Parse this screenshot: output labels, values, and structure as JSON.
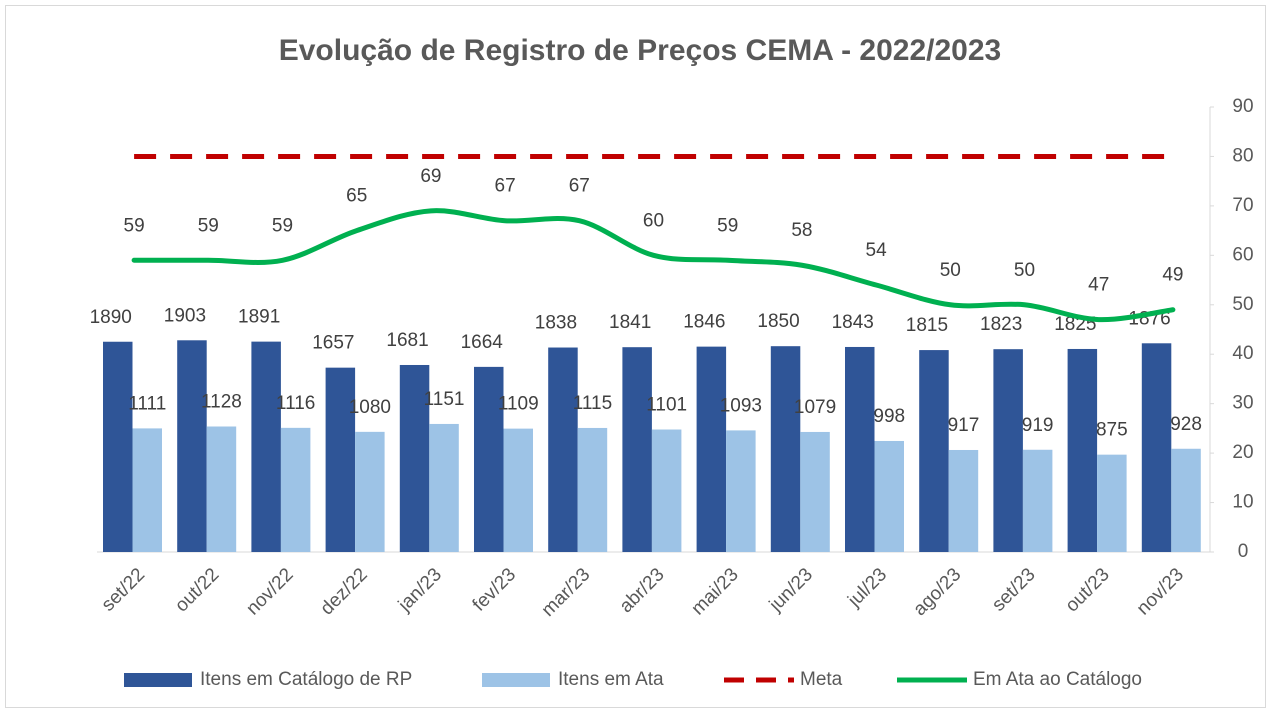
{
  "chart_data": {
    "type": "bar",
    "title": "Evolução de Registro de Preços CEMA - 2022/2023",
    "categories": [
      "set/22",
      "out/22",
      "nov/22",
      "dez/22",
      "jan/23",
      "fev/23",
      "mar/23",
      "abr/23",
      "mai/23",
      "jun/23",
      "jul/23",
      "ago/23",
      "set/23",
      "out/23",
      "nov/23"
    ],
    "series": [
      {
        "name": "Itens em Catálogo de RP",
        "color": "#2f5597",
        "type": "bar",
        "data_labels": true,
        "values": [
          1890,
          1903,
          1891,
          1657,
          1681,
          1664,
          1838,
          1841,
          1846,
          1850,
          1843,
          1815,
          1823,
          1825,
          1876
        ]
      },
      {
        "name": "Itens em Ata",
        "color": "#9dc3e6",
        "type": "bar",
        "data_labels": true,
        "values": [
          1111,
          1128,
          1116,
          1080,
          1151,
          1109,
          1115,
          1101,
          1093,
          1079,
          998,
          917,
          919,
          875,
          928
        ]
      },
      {
        "name": "Meta",
        "color": "#c00000",
        "type": "line",
        "axis": "y2",
        "linestyle": "dashed",
        "data_labels": false,
        "values": [
          80,
          80,
          80,
          80,
          80,
          80,
          80,
          80,
          80,
          80,
          80,
          80,
          80,
          80,
          80
        ]
      },
      {
        "name": "Em Ata ao Catálogo",
        "color": "#00b050",
        "type": "line",
        "axis": "y2",
        "linestyle": "solid",
        "smooth": true,
        "data_labels": true,
        "values": [
          59,
          59,
          59,
          65,
          69,
          67,
          67,
          60,
          59,
          58,
          54,
          50,
          50,
          47,
          49
        ]
      }
    ],
    "ylim": [
      0,
      4000
    ],
    "y2lim": [
      0,
      90
    ],
    "y2ticks": [
      0,
      10,
      20,
      30,
      40,
      50,
      60,
      70,
      80,
      90
    ],
    "legend": "bottom"
  }
}
